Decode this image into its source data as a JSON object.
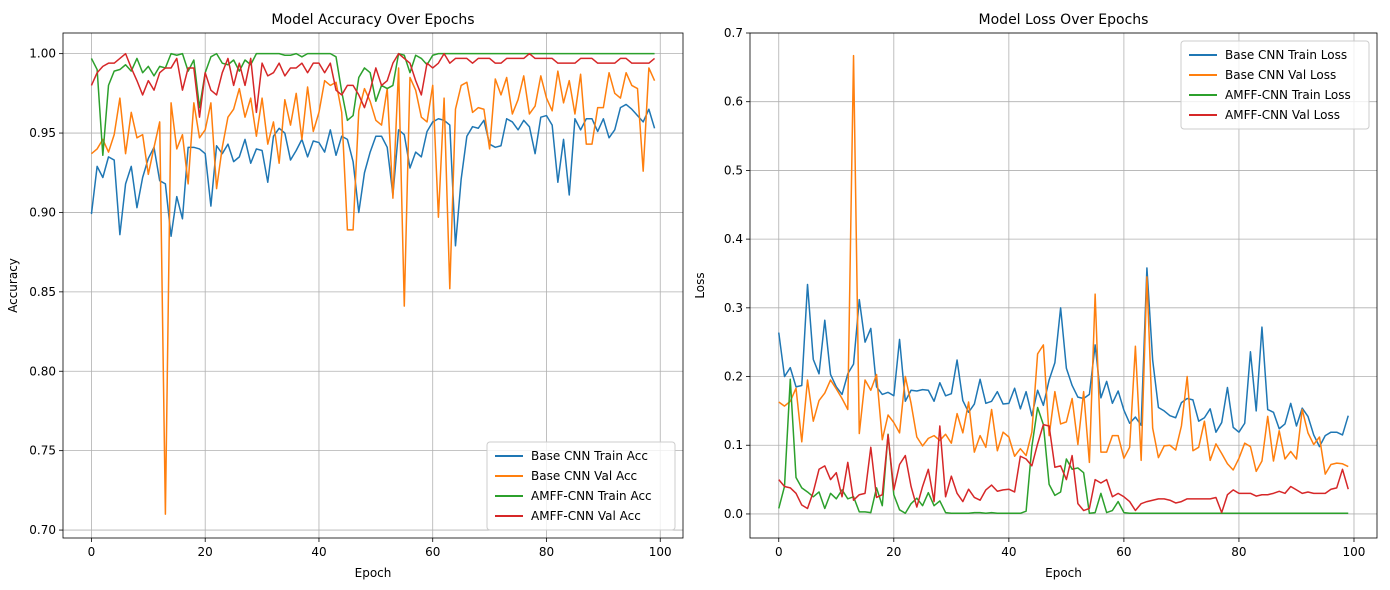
{
  "chart_data": [
    {
      "type": "line",
      "title": "Model Accuracy Over Epochs",
      "xlabel": "Epoch",
      "ylabel": "Accuracy",
      "xlim": [
        -5,
        104
      ],
      "ylim": [
        0.695,
        1.013
      ],
      "xticks": [
        0,
        20,
        40,
        60,
        80,
        100
      ],
      "yticks": [
        0.7,
        0.75,
        0.8,
        0.85,
        0.9,
        0.95,
        1.0
      ],
      "ytick_labels": [
        "0.70",
        "0.75",
        "0.80",
        "0.85",
        "0.90",
        "0.95",
        "1.00"
      ],
      "grid": true,
      "legend_position": "bottom-right",
      "series": [
        {
          "name": "Base CNN Train Acc",
          "color": "#1f77b4",
          "x_start": 0,
          "values": [
            0.899,
            0.929,
            0.922,
            0.935,
            0.933,
            0.886,
            0.918,
            0.929,
            0.903,
            0.922,
            0.934,
            0.941,
            0.92,
            0.918,
            0.885,
            0.91,
            0.896,
            0.941,
            0.941,
            0.94,
            0.937,
            0.904,
            0.942,
            0.937,
            0.943,
            0.932,
            0.935,
            0.946,
            0.931,
            0.94,
            0.939,
            0.919,
            0.948,
            0.953,
            0.95,
            0.933,
            0.939,
            0.946,
            0.935,
            0.945,
            0.944,
            0.938,
            0.952,
            0.936,
            0.948,
            0.946,
            0.932,
            0.9,
            0.925,
            0.938,
            0.948,
            0.948,
            0.941,
            0.911,
            0.952,
            0.949,
            0.928,
            0.938,
            0.935,
            0.951,
            0.957,
            0.959,
            0.958,
            0.955,
            0.879,
            0.921,
            0.948,
            0.954,
            0.953,
            0.958,
            0.943,
            0.941,
            0.942,
            0.959,
            0.957,
            0.952,
            0.958,
            0.954,
            0.937,
            0.96,
            0.961,
            0.955,
            0.919,
            0.946,
            0.911,
            0.959,
            0.952,
            0.959,
            0.959,
            0.951,
            0.959,
            0.947,
            0.952,
            0.966,
            0.968,
            0.965,
            0.961,
            0.957,
            0.965,
            0.953
          ]
        },
        {
          "name": "Base CNN Val Acc",
          "color": "#ff7f0e",
          "x_start": 0,
          "values": [
            0.937,
            0.94,
            0.946,
            0.938,
            0.949,
            0.972,
            0.937,
            0.963,
            0.947,
            0.949,
            0.924,
            0.941,
            0.957,
            0.71,
            0.969,
            0.94,
            0.949,
            0.918,
            0.969,
            0.947,
            0.952,
            0.969,
            0.915,
            0.941,
            0.96,
            0.965,
            0.978,
            0.96,
            0.972,
            0.948,
            0.972,
            0.943,
            0.957,
            0.931,
            0.971,
            0.955,
            0.975,
            0.946,
            0.979,
            0.951,
            0.963,
            0.983,
            0.98,
            0.982,
            0.963,
            0.889,
            0.889,
            0.964,
            0.978,
            0.97,
            0.958,
            0.955,
            0.978,
            0.909,
            0.991,
            0.841,
            0.985,
            0.977,
            0.96,
            0.957,
            0.98,
            0.897,
            0.972,
            0.852,
            0.965,
            0.98,
            0.982,
            0.963,
            0.966,
            0.965,
            0.94,
            0.984,
            0.974,
            0.985,
            0.962,
            0.971,
            0.986,
            0.962,
            0.967,
            0.986,
            0.972,
            0.964,
            0.989,
            0.969,
            0.983,
            0.962,
            0.987,
            0.943,
            0.943,
            0.966,
            0.966,
            0.988,
            0.975,
            0.972,
            0.988,
            0.98,
            0.978,
            0.926,
            0.991,
            0.983
          ]
        },
        {
          "name": "AMFF-CNN Train Acc",
          "color": "#2ca02c",
          "x_start": 0,
          "values": [
            0.997,
            0.99,
            0.936,
            0.98,
            0.989,
            0.99,
            0.993,
            0.989,
            0.997,
            0.988,
            0.992,
            0.986,
            0.992,
            0.991,
            1.0,
            0.999,
            1.0,
            0.989,
            0.996,
            0.966,
            0.988,
            0.998,
            1.0,
            0.994,
            0.993,
            0.996,
            0.989,
            0.996,
            0.993,
            1.0,
            1.0,
            1.0,
            1.0,
            1.0,
            0.999,
            0.999,
            1.0,
            0.998,
            1.0,
            1.0,
            1.0,
            1.0,
            1.0,
            0.998,
            0.976,
            0.958,
            0.961,
            0.985,
            0.991,
            0.988,
            0.97,
            0.98,
            0.978,
            0.98,
            1.0,
            0.999,
            0.988,
            0.999,
            0.997,
            0.993,
            0.999,
            1.0,
            1.0,
            1.0,
            1.0,
            1.0,
            1.0,
            1.0,
            1.0,
            1.0,
            1.0,
            1.0,
            1.0,
            1.0,
            1.0,
            1.0,
            1.0,
            1.0,
            1.0,
            1.0,
            1.0,
            1.0,
            1.0,
            1.0,
            1.0,
            1.0,
            1.0,
            1.0,
            1.0,
            1.0,
            1.0,
            1.0,
            1.0,
            1.0,
            1.0,
            1.0,
            1.0,
            1.0,
            1.0,
            1.0
          ]
        },
        {
          "name": "AMFF-CNN Val Acc",
          "color": "#d62728",
          "x_start": 0,
          "values": [
            0.98,
            0.988,
            0.992,
            0.994,
            0.994,
            0.997,
            1.0,
            0.991,
            0.983,
            0.974,
            0.983,
            0.977,
            0.988,
            0.991,
            0.991,
            0.997,
            0.977,
            0.991,
            0.991,
            0.96,
            0.988,
            0.977,
            0.974,
            0.988,
            0.997,
            0.98,
            0.994,
            0.98,
            0.997,
            0.963,
            0.994,
            0.986,
            0.988,
            0.994,
            0.986,
            0.991,
            0.991,
            0.994,
            0.988,
            0.994,
            0.994,
            0.988,
            0.994,
            0.977,
            0.974,
            0.98,
            0.98,
            0.974,
            0.966,
            0.977,
            0.991,
            0.98,
            0.983,
            0.994,
            1.0,
            0.997,
            0.994,
            0.983,
            0.974,
            0.994,
            0.991,
            0.994,
            1.0,
            0.994,
            0.997,
            0.997,
            0.997,
            0.994,
            0.997,
            0.997,
            0.997,
            0.994,
            0.994,
            0.997,
            0.997,
            0.997,
            0.997,
            1.0,
            0.997,
            0.997,
            0.997,
            0.997,
            0.994,
            0.994,
            0.994,
            0.994,
            0.997,
            0.997,
            0.997,
            0.994,
            0.994,
            0.994,
            0.994,
            0.997,
            0.997,
            0.994,
            0.994,
            0.994,
            0.994,
            0.997
          ]
        }
      ]
    },
    {
      "type": "line",
      "title": "Model Loss Over Epochs",
      "xlabel": "Epoch",
      "ylabel": "Loss",
      "xlim": [
        -5,
        104
      ],
      "ylim": [
        -0.035,
        0.7
      ],
      "xticks": [
        0,
        20,
        40,
        60,
        80,
        100
      ],
      "yticks": [
        0.0,
        0.1,
        0.2,
        0.3,
        0.4,
        0.5,
        0.6,
        0.7
      ],
      "ytick_labels": [
        "0.0",
        "0.1",
        "0.2",
        "0.3",
        "0.4",
        "0.5",
        "0.6",
        "0.7"
      ],
      "grid": true,
      "legend_position": "top-right",
      "series": [
        {
          "name": "Base CNN Train Loss",
          "color": "#1f77b4",
          "x_start": 0,
          "values": [
            0.264,
            0.2,
            0.213,
            0.185,
            0.187,
            0.334,
            0.225,
            0.204,
            0.282,
            0.203,
            0.185,
            0.174,
            0.204,
            0.218,
            0.312,
            0.25,
            0.27,
            0.185,
            0.174,
            0.177,
            0.172,
            0.254,
            0.164,
            0.18,
            0.179,
            0.181,
            0.18,
            0.164,
            0.191,
            0.172,
            0.175,
            0.224,
            0.165,
            0.148,
            0.16,
            0.196,
            0.161,
            0.164,
            0.178,
            0.16,
            0.161,
            0.183,
            0.153,
            0.178,
            0.143,
            0.18,
            0.158,
            0.195,
            0.22,
            0.3,
            0.212,
            0.187,
            0.17,
            0.168,
            0.174,
            0.246,
            0.169,
            0.193,
            0.161,
            0.179,
            0.151,
            0.132,
            0.141,
            0.129,
            0.358,
            0.224,
            0.155,
            0.15,
            0.143,
            0.14,
            0.162,
            0.168,
            0.166,
            0.135,
            0.14,
            0.153,
            0.119,
            0.133,
            0.184,
            0.126,
            0.119,
            0.132,
            0.236,
            0.15,
            0.272,
            0.152,
            0.148,
            0.124,
            0.131,
            0.161,
            0.128,
            0.154,
            0.142,
            0.115,
            0.098,
            0.114,
            0.119,
            0.119,
            0.115,
            0.143
          ]
        },
        {
          "name": "Base CNN Val Loss",
          "color": "#ff7f0e",
          "x_start": 0,
          "values": [
            0.163,
            0.157,
            0.164,
            0.183,
            0.105,
            0.195,
            0.135,
            0.165,
            0.176,
            0.195,
            0.182,
            0.168,
            0.152,
            0.667,
            0.117,
            0.195,
            0.18,
            0.203,
            0.108,
            0.144,
            0.133,
            0.118,
            0.2,
            0.161,
            0.112,
            0.099,
            0.11,
            0.114,
            0.107,
            0.116,
            0.103,
            0.146,
            0.118,
            0.163,
            0.09,
            0.114,
            0.097,
            0.152,
            0.092,
            0.119,
            0.112,
            0.084,
            0.095,
            0.085,
            0.119,
            0.233,
            0.246,
            0.114,
            0.178,
            0.131,
            0.134,
            0.168,
            0.101,
            0.178,
            0.075,
            0.32,
            0.09,
            0.09,
            0.114,
            0.114,
            0.081,
            0.097,
            0.244,
            0.078,
            0.345,
            0.125,
            0.082,
            0.099,
            0.1,
            0.093,
            0.128,
            0.2,
            0.092,
            0.097,
            0.135,
            0.078,
            0.102,
            0.088,
            0.073,
            0.064,
            0.081,
            0.103,
            0.098,
            0.062,
            0.077,
            0.142,
            0.077,
            0.121,
            0.08,
            0.091,
            0.08,
            0.152,
            0.118,
            0.101,
            0.112,
            0.058,
            0.072,
            0.074,
            0.073,
            0.069
          ]
        },
        {
          "name": "AMFF-CNN Train Loss",
          "color": "#2ca02c",
          "x_start": 0,
          "values": [
            0.008,
            0.04,
            0.196,
            0.053,
            0.038,
            0.032,
            0.025,
            0.032,
            0.008,
            0.03,
            0.022,
            0.035,
            0.022,
            0.025,
            0.003,
            0.003,
            0.002,
            0.038,
            0.012,
            0.116,
            0.028,
            0.006,
            0.001,
            0.015,
            0.023,
            0.012,
            0.031,
            0.012,
            0.019,
            0.002,
            0.001,
            0.001,
            0.001,
            0.001,
            0.002,
            0.002,
            0.001,
            0.002,
            0.001,
            0.001,
            0.001,
            0.001,
            0.001,
            0.004,
            0.098,
            0.155,
            0.13,
            0.043,
            0.027,
            0.032,
            0.08,
            0.065,
            0.067,
            0.06,
            0.001,
            0.002,
            0.03,
            0.002,
            0.005,
            0.018,
            0.002,
            0.001,
            0.001,
            0.001,
            0.001,
            0.001,
            0.001,
            0.001,
            0.001,
            0.001,
            0.001,
            0.001,
            0.001,
            0.001,
            0.001,
            0.001,
            0.001,
            0.001,
            0.001,
            0.001,
            0.001,
            0.001,
            0.001,
            0.001,
            0.001,
            0.001,
            0.001,
            0.001,
            0.001,
            0.001,
            0.001,
            0.001,
            0.001,
            0.001,
            0.001,
            0.001,
            0.001,
            0.001,
            0.001,
            0.001
          ]
        },
        {
          "name": "AMFF-CNN Val Loss",
          "color": "#d62728",
          "x_start": 0,
          "values": [
            0.05,
            0.04,
            0.038,
            0.03,
            0.013,
            0.008,
            0.032,
            0.065,
            0.07,
            0.05,
            0.06,
            0.025,
            0.075,
            0.02,
            0.028,
            0.03,
            0.097,
            0.024,
            0.028,
            0.115,
            0.035,
            0.072,
            0.085,
            0.04,
            0.01,
            0.04,
            0.065,
            0.018,
            0.128,
            0.025,
            0.055,
            0.03,
            0.018,
            0.036,
            0.024,
            0.02,
            0.035,
            0.042,
            0.033,
            0.035,
            0.036,
            0.032,
            0.084,
            0.08,
            0.07,
            0.102,
            0.13,
            0.128,
            0.068,
            0.07,
            0.05,
            0.085,
            0.015,
            0.005,
            0.008,
            0.05,
            0.045,
            0.05,
            0.025,
            0.03,
            0.025,
            0.018,
            0.005,
            0.015,
            0.018,
            0.02,
            0.022,
            0.022,
            0.02,
            0.016,
            0.018,
            0.022,
            0.022,
            0.022,
            0.022,
            0.022,
            0.024,
            0.002,
            0.028,
            0.035,
            0.03,
            0.03,
            0.03,
            0.026,
            0.028,
            0.028,
            0.03,
            0.033,
            0.03,
            0.04,
            0.035,
            0.03,
            0.032,
            0.03,
            0.03,
            0.03,
            0.036,
            0.038,
            0.065,
            0.036
          ]
        }
      ]
    }
  ]
}
